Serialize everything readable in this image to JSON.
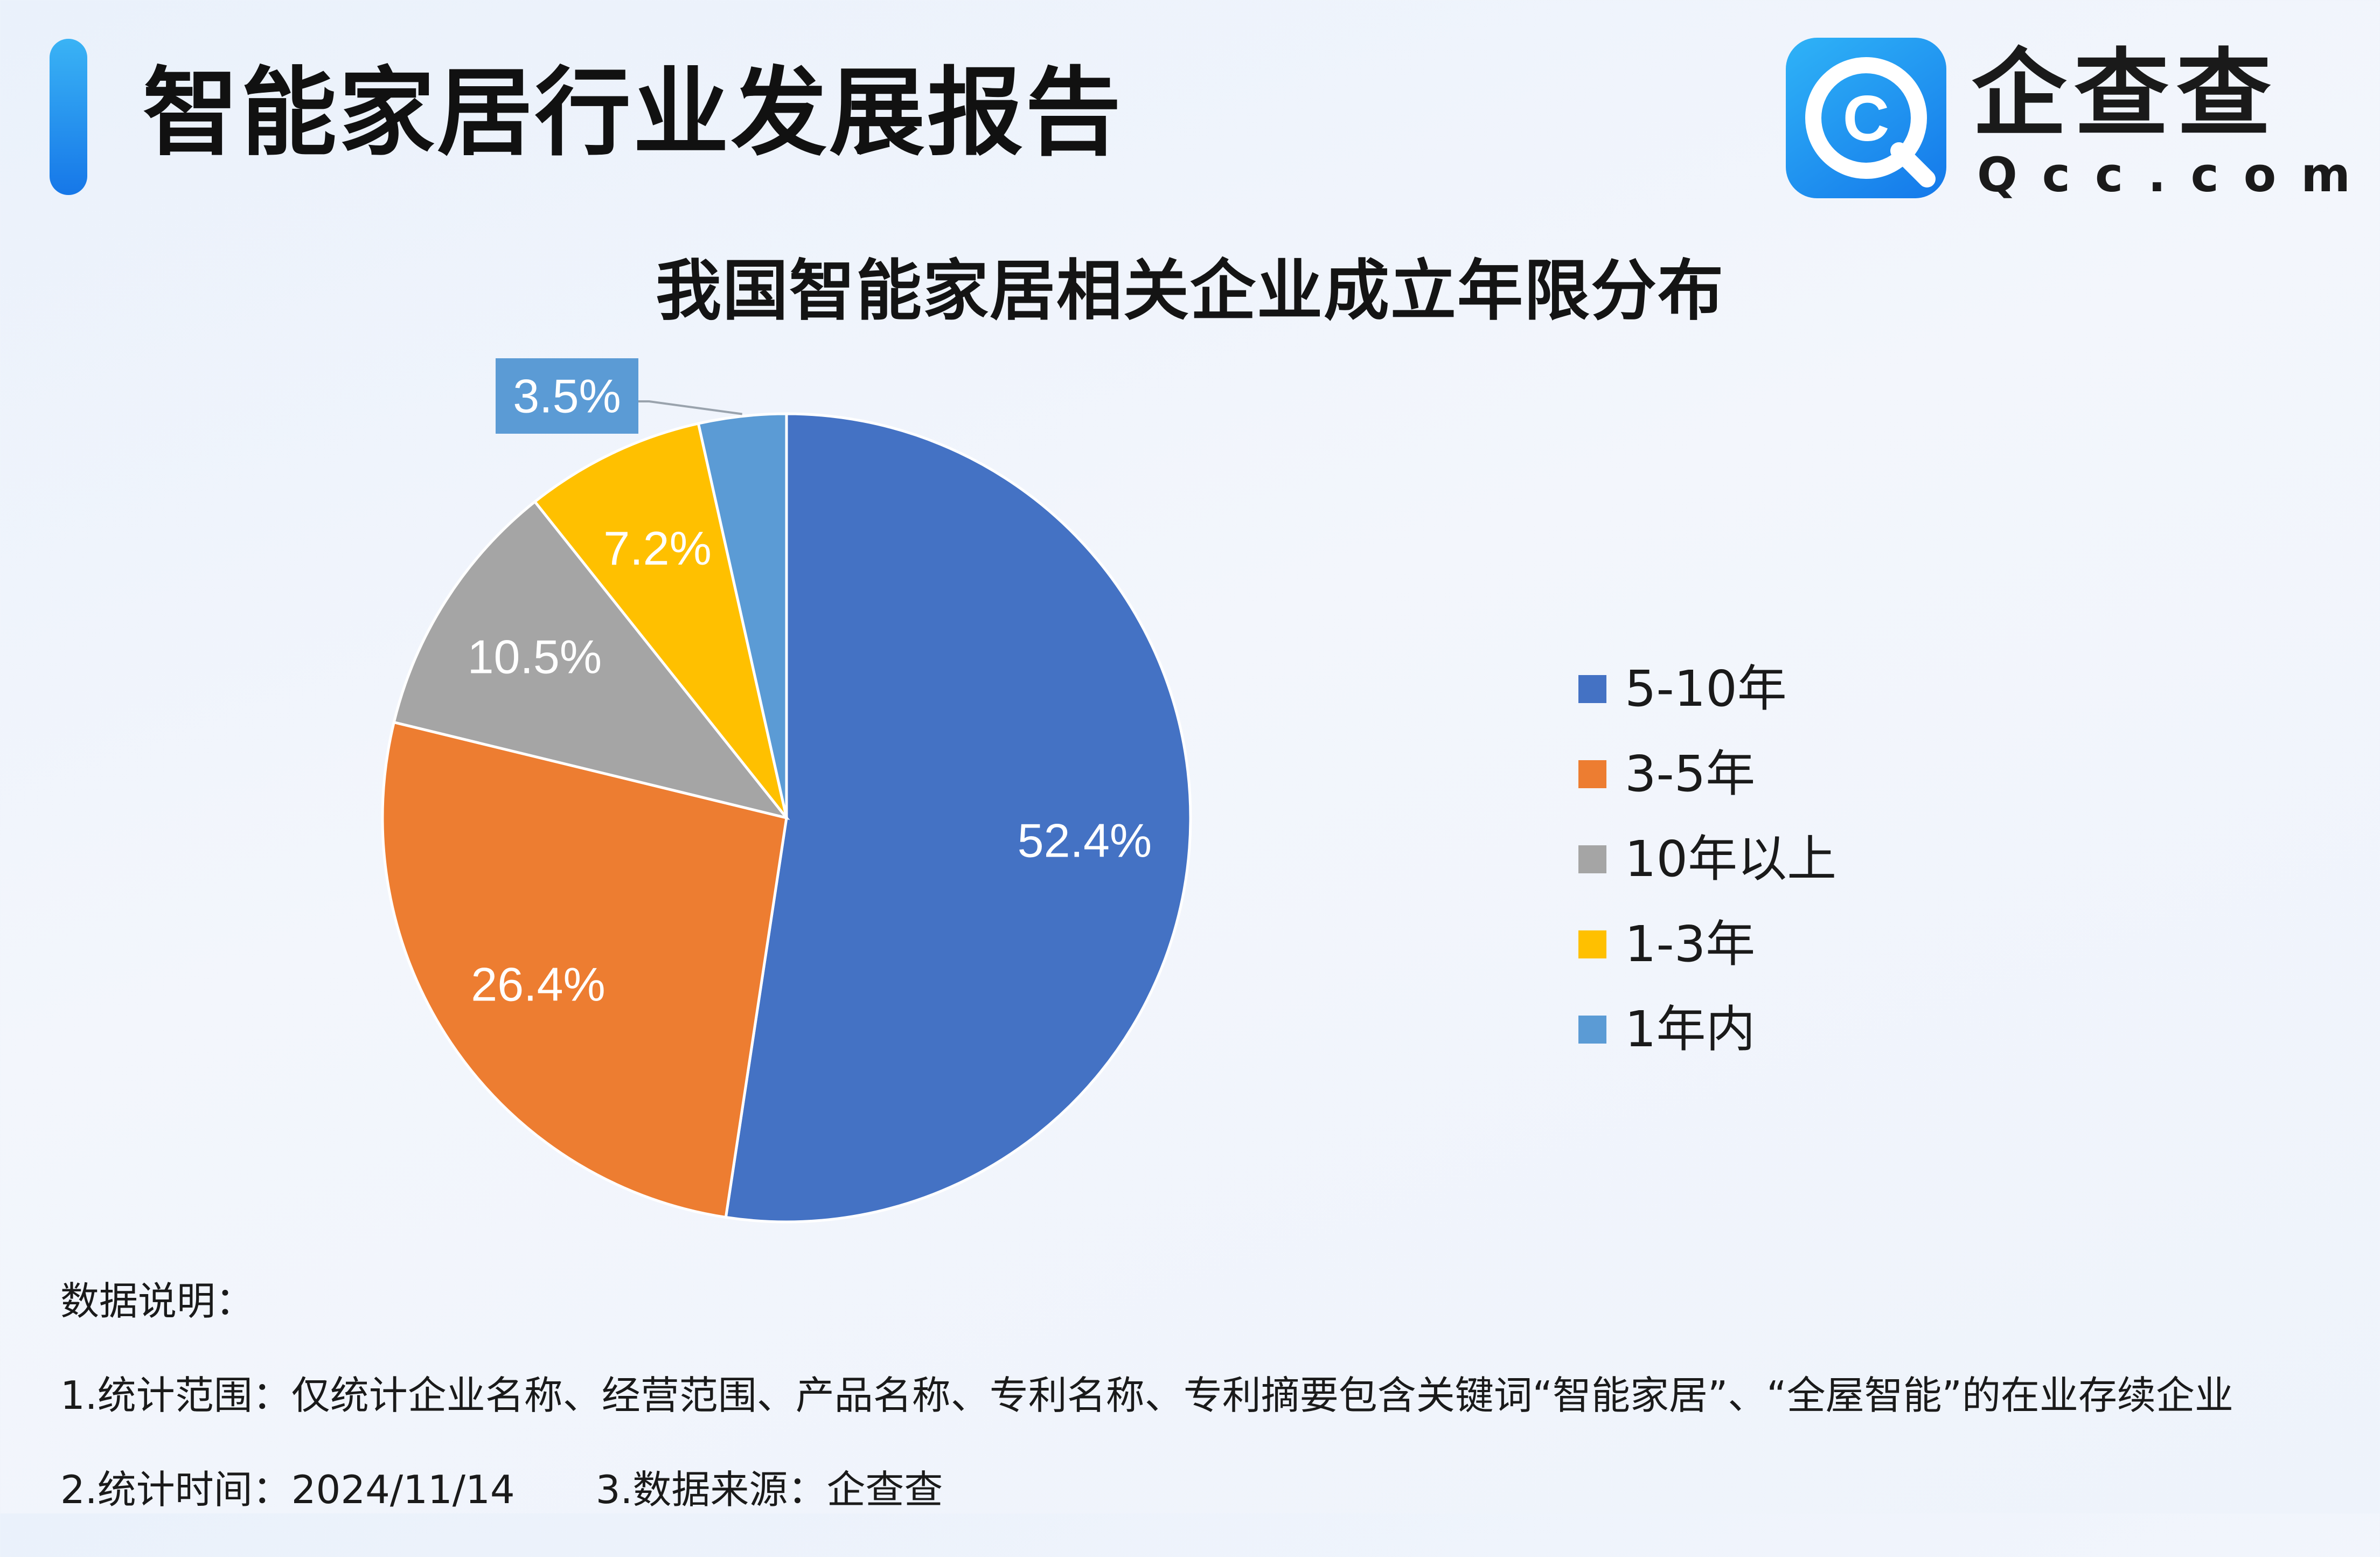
{
  "header": {
    "title": "智能家居行业发展报告"
  },
  "brand": {
    "name_cn": "企查查",
    "name_en": "Qcc.com",
    "logo_letter": "C",
    "colors": {
      "logo_gradient_start": "#2fb3f7",
      "logo_gradient_end": "#1478ea",
      "accent_bar": "#1677e8"
    }
  },
  "chart_data": {
    "type": "pie",
    "title": "我国智能家居相关企业成立年限分布",
    "categories": [
      "5-10年",
      "3-5年",
      "10年以上",
      "1-3年",
      "1年内"
    ],
    "values": [
      52.4,
      26.4,
      10.5,
      7.2,
      3.5
    ],
    "labels": [
      "52.4%",
      "26.4%",
      "10.5%",
      "7.2%",
      "3.5%"
    ],
    "colors": [
      "#4472c4",
      "#ed7d31",
      "#a5a5a5",
      "#ffc000",
      "#5b9bd5"
    ],
    "start_angle": "12 o'clock",
    "direction": "clockwise",
    "legend_position": "right"
  },
  "notes": {
    "heading": "数据说明：",
    "line1": "1.统计范围：仅统计企业名称、经营范围、产品名称、专利名称、专利摘要包含关键词“智能家居”、“全屋智能”的在业存续企业",
    "line2a": "2.统计时间：2024/11/14",
    "line2b": "3.数据来源：企查查"
  }
}
